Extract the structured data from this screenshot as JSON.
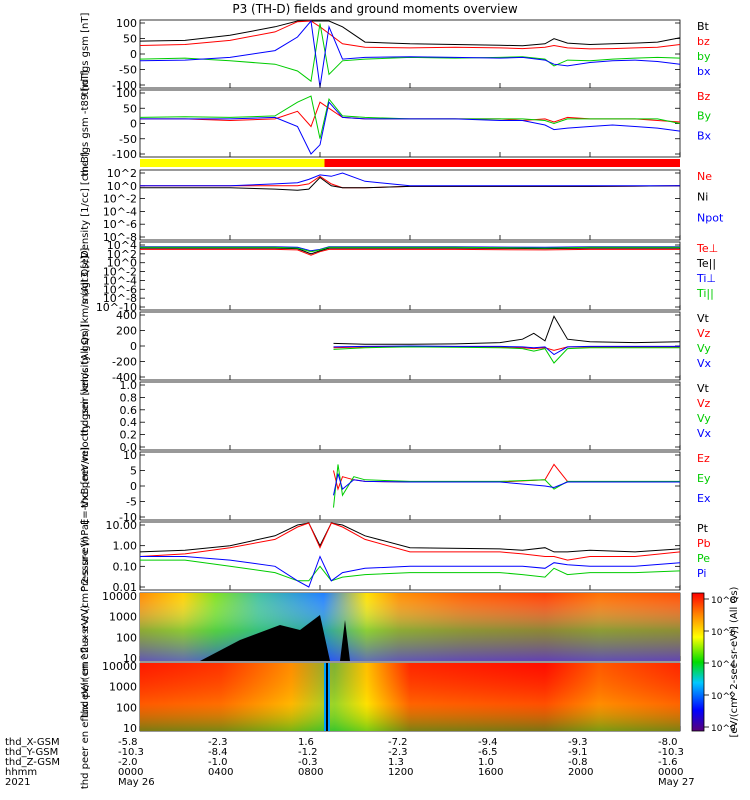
{
  "title": "P3 (TH-D) fields and ground moments overview",
  "colors": {
    "black": "#000000",
    "red": "#ff0000",
    "green": "#00cc00",
    "blue": "#0000ff",
    "yellow": "#ffff00"
  },
  "x_axis": {
    "hhmm": [
      "0000",
      "0400",
      "0800",
      "1200",
      "1600",
      "2000",
      "0000"
    ],
    "row_labels": [
      "thd_X-GSM",
      "thd_Y-GSM",
      "thd_Z-GSM",
      "hhmm",
      "2021"
    ],
    "x_gsm": [
      "-5.8",
      "-2.3",
      "1.6",
      "-7.2",
      "-9.4",
      "-9.3",
      "-8.0"
    ],
    "y_gsm": [
      "-10.3",
      "-8.4",
      "-1.2",
      "-2.3",
      "-6.5",
      "-9.1",
      "-10.3"
    ],
    "z_gsm": [
      "-2.0",
      "-1.0",
      "-0.3",
      "1.3",
      "1.0",
      "-0.8",
      "-1.6"
    ],
    "dates": [
      "May 26",
      "",
      "",
      "",
      "",
      "",
      "May 27"
    ]
  },
  "colorbar": {
    "label": "[eV/(cm^2-sec-sr-eV)] (All Qs)",
    "ticks": [
      "10^0",
      "10^2",
      "10^4",
      "10^6",
      "10^8"
    ]
  },
  "chart_data": [
    {
      "type": "line",
      "panel": "fgs_gsm",
      "ylabel": "thd fgs gsm [nT]",
      "ylim": [
        -100,
        100
      ],
      "yticks": [
        "100",
        "50",
        "0",
        "-50",
        "-100"
      ],
      "x": [
        0,
        2,
        4,
        6,
        7,
        7.6,
        8,
        8.4,
        9,
        10,
        12,
        14,
        16,
        17,
        18,
        18.4,
        19,
        20,
        21,
        22,
        23,
        24
      ],
      "series": [
        {
          "name": "Bt",
          "color": "black",
          "values": [
            38,
            40,
            55,
            80,
            100,
            100,
            100,
            100,
            80,
            35,
            30,
            28,
            26,
            24,
            30,
            45,
            32,
            28,
            30,
            32,
            35,
            48
          ]
        },
        {
          "name": "bz",
          "color": "red",
          "values": [
            25,
            28,
            40,
            65,
            95,
            100,
            80,
            60,
            30,
            20,
            18,
            20,
            18,
            16,
            20,
            25,
            18,
            15,
            16,
            18,
            20,
            28
          ]
        },
        {
          "name": "by",
          "color": "green",
          "values": [
            -15,
            -12,
            -20,
            -30,
            -50,
            -80,
            90,
            -60,
            -20,
            -15,
            -10,
            -12,
            -10,
            -8,
            -15,
            -35,
            -18,
            -20,
            -15,
            -12,
            -10,
            -12
          ]
        },
        {
          "name": "bx",
          "color": "blue",
          "values": [
            -20,
            -18,
            -10,
            10,
            50,
            100,
            -100,
            80,
            -15,
            -10,
            -8,
            -10,
            -12,
            -10,
            -18,
            -30,
            -35,
            -25,
            -20,
            -18,
            -22,
            -30
          ]
        }
      ]
    },
    {
      "type": "line",
      "panel": "fgs_gsm_t89",
      "ylabel": "thd fgs gsm -t89 [nT]",
      "ylim": [
        -120,
        100
      ],
      "yticks": [
        "100",
        "50",
        "0",
        "-50",
        "-100"
      ],
      "x": [
        0,
        2,
        4,
        6,
        7,
        7.6,
        8,
        8.4,
        9,
        10,
        12,
        14,
        16,
        17,
        18,
        18.4,
        19,
        20,
        21,
        22,
        23,
        24
      ],
      "series": [
        {
          "name": "Bz",
          "color": "red",
          "values": [
            5,
            5,
            0,
            5,
            30,
            -20,
            60,
            40,
            10,
            5,
            5,
            5,
            5,
            0,
            5,
            -5,
            10,
            5,
            5,
            5,
            0,
            -5
          ]
        },
        {
          "name": "By",
          "color": "green",
          "values": [
            10,
            12,
            10,
            15,
            60,
            80,
            -60,
            70,
            15,
            10,
            5,
            5,
            5,
            5,
            0,
            -10,
            5,
            5,
            5,
            5,
            5,
            -10
          ]
        },
        {
          "name": "Bx",
          "color": "blue",
          "values": [
            5,
            5,
            5,
            10,
            -20,
            -110,
            -80,
            60,
            10,
            5,
            5,
            5,
            0,
            0,
            -15,
            -30,
            -25,
            -20,
            -15,
            -20,
            -25,
            -35
          ]
        }
      ]
    },
    {
      "type": "bar",
      "panel": "region_bar",
      "categories": [
        "yellow",
        "red"
      ],
      "values": [
        8.2,
        15.8
      ]
    },
    {
      "type": "line",
      "panel": "density",
      "ylabel": "Density [1/cc] [cm-3]",
      "log": true,
      "yticks": [
        "10^2",
        "10^0",
        "10^-2",
        "10^-4",
        "10^-6",
        "10^-8"
      ],
      "x": [
        0,
        2,
        4,
        6,
        7,
        7.5,
        8,
        8.5,
        9,
        10,
        12,
        16,
        20,
        24
      ],
      "series": [
        {
          "name": "Ne",
          "color": "red",
          "values": [
            1,
            1,
            1,
            1,
            1,
            2,
            30,
            2,
            0.5,
            0.5,
            0.8,
            0.8,
            0.8,
            1
          ]
        },
        {
          "name": "Ni",
          "color": "black",
          "values": [
            0.5,
            0.5,
            0.5,
            0.3,
            0.2,
            0.3,
            20,
            1,
            0.5,
            0.5,
            0.8,
            0.8,
            0.8,
            1
          ]
        },
        {
          "name": "Npot",
          "color": "blue",
          "values": [
            1,
            1,
            1,
            2,
            3,
            10,
            50,
            30,
            100,
            5,
            1,
            1,
            1,
            1
          ]
        }
      ]
    },
    {
      "type": "line",
      "panel": "temperature",
      "ylabel": "magt3 [eV]",
      "log": true,
      "yticks": [
        "10^4",
        "10^2",
        "10^0",
        "10^-2",
        "10^-4",
        "10^-6",
        "10^-8",
        "10^-10"
      ],
      "x": [
        0,
        4,
        6,
        7,
        7.6,
        8,
        8.4,
        10,
        14,
        18,
        20,
        24
      ],
      "series": [
        {
          "name": "Te⊥",
          "color": "red",
          "values": [
            1000,
            1000,
            1000,
            800,
            50,
            300,
            1000,
            1000,
            1000,
            800,
            1000,
            1000
          ]
        },
        {
          "name": "Te||",
          "color": "black",
          "values": [
            2000,
            2000,
            2000,
            1500,
            100,
            500,
            2000,
            2000,
            2000,
            1500,
            2000,
            2000
          ]
        },
        {
          "name": "Ti⊥",
          "color": "blue",
          "values": [
            4000,
            4000,
            4000,
            3000,
            500,
            1000,
            4000,
            4000,
            4000,
            3000,
            4000,
            4000
          ]
        },
        {
          "name": "Ti||",
          "color": "green",
          "values": [
            3000,
            3000,
            3000,
            2000,
            300,
            800,
            3000,
            3000,
            3000,
            2000,
            3000,
            3000
          ]
        }
      ]
    },
    {
      "type": "line",
      "panel": "peir_velocity",
      "ylabel": "thd peir velocity gsm [km/s (All Qs)]",
      "ylim": [
        -400,
        400
      ],
      "yticks": [
        "400",
        "200",
        "0",
        "-200",
        "-400"
      ],
      "x": [
        8.6,
        10,
        12,
        14,
        16,
        17,
        17.5,
        18,
        18.4,
        19,
        20,
        22,
        24
      ],
      "series": [
        {
          "name": "Vt",
          "color": "black",
          "values": [
            30,
            20,
            20,
            25,
            40,
            80,
            150,
            60,
            350,
            80,
            50,
            40,
            50
          ]
        },
        {
          "name": "Vz",
          "color": "red",
          "values": [
            -20,
            -10,
            -5,
            -10,
            -10,
            -20,
            -30,
            -20,
            -50,
            -10,
            -10,
            -10,
            -10
          ]
        },
        {
          "name": "Vy",
          "color": "green",
          "values": [
            -40,
            -20,
            -10,
            -15,
            -20,
            -30,
            -60,
            -30,
            -200,
            -30,
            -20,
            -20,
            -20
          ]
        },
        {
          "name": "Vx",
          "color": "blue",
          "values": [
            -10,
            -5,
            0,
            -5,
            -5,
            -10,
            -20,
            -10,
            -100,
            -10,
            -5,
            -5,
            -5
          ]
        }
      ]
    },
    {
      "type": "line",
      "panel": "peer_velocity",
      "ylabel": "thd peer velocity gsm [km/s (All Qs)]",
      "ylim": [
        0,
        1
      ],
      "yticks": [
        "1.0",
        "0.8",
        "0.6",
        "0.4",
        "0.2",
        "0.0"
      ],
      "x": [],
      "series": [
        {
          "name": "Vt",
          "color": "black",
          "values": []
        },
        {
          "name": "Vz",
          "color": "red",
          "values": []
        },
        {
          "name": "Vy",
          "color": "green",
          "values": []
        },
        {
          "name": "Vx",
          "color": "blue",
          "values": []
        }
      ]
    },
    {
      "type": "line",
      "panel": "e_field",
      "ylabel": "E=-VxB [mV/m]",
      "ylim": [
        -12,
        10
      ],
      "yticks": [
        "10",
        "5",
        "0",
        "-5",
        "-10"
      ],
      "x": [
        8.6,
        8.8,
        9,
        9.5,
        10,
        12,
        16,
        18,
        18.4,
        19,
        20,
        24
      ],
      "series": [
        {
          "name": "Ez",
          "color": "red",
          "values": [
            4,
            -2,
            2,
            1,
            0.5,
            0.3,
            0.3,
            1,
            6,
            0.5,
            0.3,
            0.3
          ]
        },
        {
          "name": "Ey",
          "color": "green",
          "values": [
            -8,
            6,
            -4,
            2,
            1,
            0.5,
            0.5,
            1,
            -2,
            0.5,
            0.5,
            0.5
          ]
        },
        {
          "name": "Ex",
          "color": "blue",
          "values": [
            -4,
            3,
            -2,
            1,
            0.5,
            0.3,
            0.3,
            -1,
            -1.5,
            0.3,
            0.3,
            0.3
          ]
        }
      ]
    },
    {
      "type": "line",
      "panel": "pressure",
      "ylabel": "Pressure [nPa]",
      "log": true,
      "yticks": [
        "10.00",
        "1.00",
        "0.10",
        "0.01"
      ],
      "x": [
        0,
        2,
        4,
        6,
        7,
        7.5,
        8,
        8.5,
        9,
        10,
        12,
        16,
        17,
        18,
        18.4,
        19,
        20,
        22,
        24
      ],
      "series": [
        {
          "name": "Pt",
          "color": "black",
          "values": [
            0.5,
            0.6,
            1,
            3,
            10,
            20,
            1,
            20,
            10,
            3,
            0.8,
            0.7,
            0.6,
            0.8,
            0.5,
            0.5,
            0.6,
            0.5,
            0.7
          ]
        },
        {
          "name": "Pb",
          "color": "red",
          "values": [
            0.3,
            0.4,
            0.8,
            2,
            8,
            20,
            0.8,
            20,
            8,
            2,
            0.5,
            0.5,
            0.4,
            0.3,
            0.3,
            0.2,
            0.3,
            0.3,
            0.5
          ]
        },
        {
          "name": "Pe",
          "color": "green",
          "values": [
            0.2,
            0.2,
            0.1,
            0.05,
            0.02,
            0.02,
            0.1,
            0.02,
            0.03,
            0.04,
            0.05,
            0.05,
            0.04,
            0.03,
            0.08,
            0.04,
            0.05,
            0.05,
            0.06
          ]
        },
        {
          "name": "Pi",
          "color": "blue",
          "values": [
            0.3,
            0.3,
            0.2,
            0.1,
            0.02,
            0.01,
            0.3,
            0.02,
            0.05,
            0.08,
            0.1,
            0.1,
            0.1,
            0.08,
            0.15,
            0.12,
            0.1,
            0.1,
            0.15
          ]
        }
      ]
    },
    {
      "type": "heatmap",
      "panel": "peir_eflux",
      "ylabel": "thd peir en eflux eV/ (cm^2-s-sr-eV)",
      "yticks": [
        "10000",
        "1000",
        "100",
        "10"
      ]
    },
    {
      "type": "heatmap",
      "panel": "peer_eflux",
      "ylabel": "thd peer en eflux eV/ (cm^2-s-sr-eV)",
      "yticks": [
        "10000",
        "1000",
        "100",
        "10"
      ]
    }
  ]
}
